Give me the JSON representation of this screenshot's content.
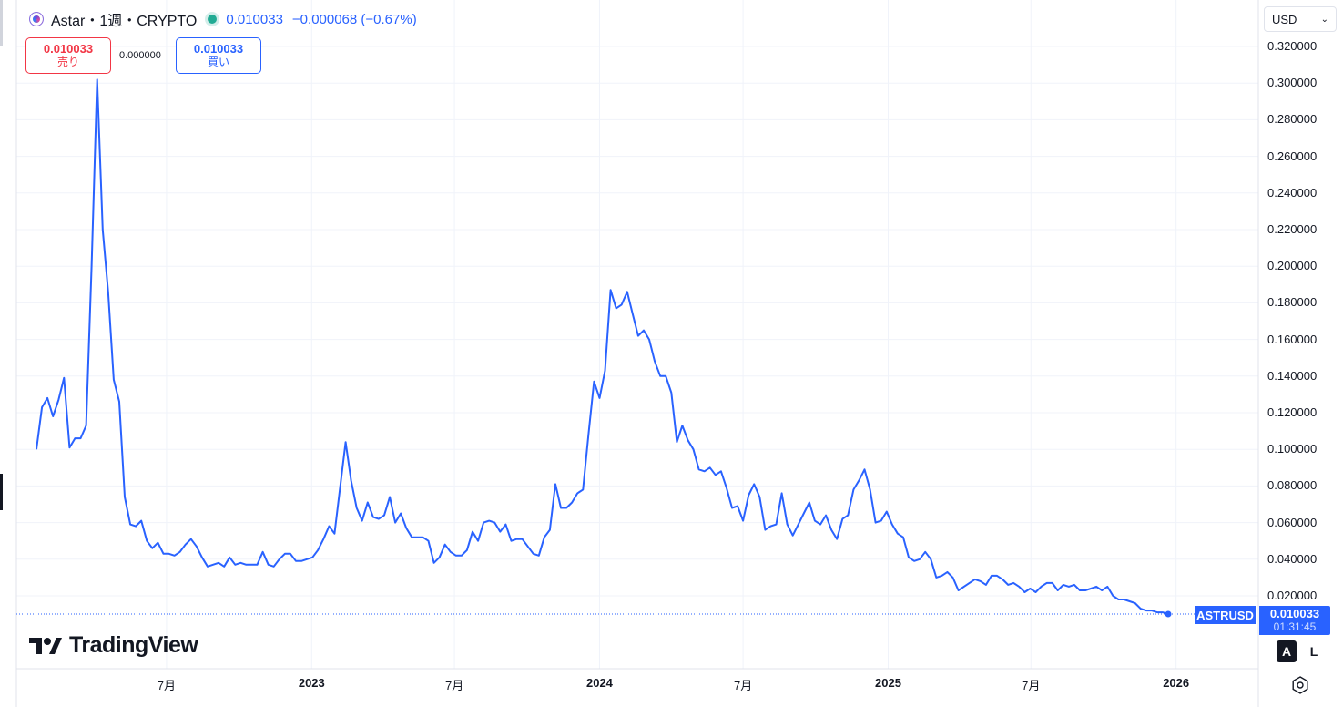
{
  "header": {
    "symbol_title": "Astar・1週・CRYPTO",
    "last_price": "0.010033",
    "change": "−0.000068 (−0.67%)",
    "icon": "astar-logo-icon",
    "status_icon": "market-open-dot-icon"
  },
  "trade": {
    "sell_price": "0.010033",
    "sell_label": "売り",
    "spread": "0.000000",
    "buy_price": "0.010033",
    "buy_label": "買い"
  },
  "currency_selector": {
    "value": "USD"
  },
  "price_tag": {
    "symbol": "ASTRUSD",
    "price": "0.010033",
    "countdown": "01:31:45"
  },
  "brand": {
    "name": "TradingView",
    "icon": "tradingview-logo-icon"
  },
  "scale_buttons": {
    "auto": "A",
    "log": "L"
  },
  "settings_icon": "settings-gear-icon",
  "colors": {
    "line": "#2962ff",
    "sell": "#f23645",
    "buy": "#2962ff",
    "grid": "#f0f3fa"
  },
  "chart_data": {
    "type": "line",
    "series": [
      {
        "name": "ASTRUSD",
        "x_start": "2022-01-17",
        "interval": "1 week",
        "values": [
          0.1,
          0.123,
          0.128,
          0.118,
          0.127,
          0.139,
          0.101,
          0.106,
          0.106,
          0.113,
          0.2,
          0.302,
          0.22,
          0.186,
          0.138,
          0.126,
          0.074,
          0.059,
          0.058,
          0.061,
          0.05,
          0.046,
          0.049,
          0.043,
          0.043,
          0.042,
          0.044,
          0.048,
          0.051,
          0.047,
          0.041,
          0.036,
          0.037,
          0.038,
          0.036,
          0.041,
          0.037,
          0.038,
          0.037,
          0.037,
          0.037,
          0.044,
          0.037,
          0.036,
          0.04,
          0.043,
          0.043,
          0.039,
          0.039,
          0.04,
          0.041,
          0.045,
          0.051,
          0.058,
          0.054,
          0.079,
          0.104,
          0.083,
          0.068,
          0.061,
          0.071,
          0.063,
          0.062,
          0.064,
          0.074,
          0.06,
          0.065,
          0.057,
          0.052,
          0.052,
          0.052,
          0.05,
          0.038,
          0.041,
          0.048,
          0.044,
          0.042,
          0.042,
          0.045,
          0.055,
          0.05,
          0.06,
          0.061,
          0.06,
          0.055,
          0.059,
          0.05,
          0.051,
          0.051,
          0.047,
          0.043,
          0.042,
          0.052,
          0.056,
          0.081,
          0.068,
          0.068,
          0.071,
          0.076,
          0.078,
          0.108,
          0.137,
          0.128,
          0.143,
          0.187,
          0.177,
          0.179,
          0.186,
          0.174,
          0.162,
          0.165,
          0.16,
          0.148,
          0.14,
          0.14,
          0.131,
          0.104,
          0.113,
          0.105,
          0.1,
          0.089,
          0.088,
          0.09,
          0.086,
          0.088,
          0.079,
          0.068,
          0.069,
          0.061,
          0.075,
          0.081,
          0.074,
          0.056,
          0.058,
          0.059,
          0.076,
          0.059,
          0.053,
          0.059,
          0.065,
          0.071,
          0.061,
          0.059,
          0.064,
          0.056,
          0.051,
          0.062,
          0.064,
          0.078,
          0.083,
          0.089,
          0.078,
          0.06,
          0.061,
          0.066,
          0.059,
          0.054,
          0.052,
          0.041,
          0.039,
          0.04,
          0.044,
          0.04,
          0.03,
          0.031,
          0.033,
          0.03,
          0.023,
          0.025,
          0.027,
          0.029,
          0.028,
          0.026,
          0.031,
          0.031,
          0.029,
          0.026,
          0.027,
          0.025,
          0.022,
          0.024,
          0.022,
          0.025,
          0.027,
          0.027,
          0.023,
          0.026,
          0.025,
          0.026,
          0.023,
          0.023,
          0.024,
          0.025,
          0.023,
          0.025,
          0.02,
          0.018,
          0.018,
          0.017,
          0.016,
          0.013,
          0.012,
          0.012,
          0.011,
          0.011,
          0.010033
        ]
      }
    ],
    "x_ticks": [
      {
        "label": "7月",
        "date": "2022-07-01",
        "bold": false
      },
      {
        "label": "2023",
        "date": "2023-01-01",
        "bold": true
      },
      {
        "label": "7月",
        "date": "2023-07-01",
        "bold": false
      },
      {
        "label": "2024",
        "date": "2024-01-01",
        "bold": true
      },
      {
        "label": "7月",
        "date": "2024-07-01",
        "bold": false
      },
      {
        "label": "2025",
        "date": "2025-01-01",
        "bold": true
      },
      {
        "label": "7月",
        "date": "2025-07-01",
        "bold": false
      },
      {
        "label": "2026",
        "date": "2026-01-01",
        "bold": true
      }
    ],
    "y_ticks": [
      "0.320000",
      "0.300000",
      "0.280000",
      "0.260000",
      "0.240000",
      "0.220000",
      "0.200000",
      "0.180000",
      "0.160000",
      "0.140000",
      "0.120000",
      "0.100000",
      "0.080000",
      "0.060000",
      "0.040000",
      "0.020000"
    ],
    "ylim": [
      0,
      0.33
    ],
    "last_value": 0.010033,
    "grid": true
  }
}
